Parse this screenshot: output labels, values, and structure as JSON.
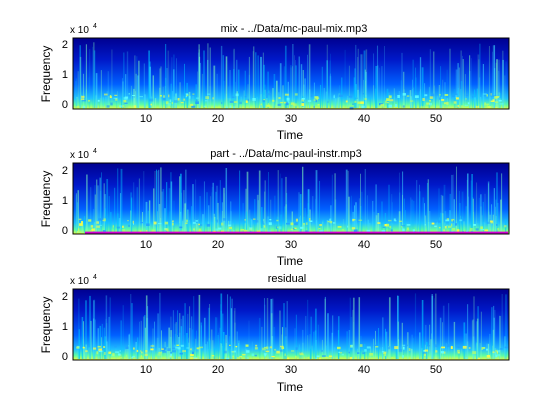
{
  "chart_data": [
    {
      "type": "heatmap",
      "title": "mix - ../Data/mc-paul-mix.mp3",
      "xlabel": "Time",
      "ylabel": "Frequency",
      "y_exponent_label": "x 10",
      "y_exponent": "4",
      "xlim": [
        0,
        60
      ],
      "ylim": [
        0,
        22050
      ],
      "xticks": [
        10,
        20,
        30,
        40,
        50
      ],
      "yticks": [
        0,
        1,
        2
      ],
      "colormap": "jet",
      "grid": false,
      "overlay": null
    },
    {
      "type": "heatmap",
      "title": "part - ../Data/mc-paul-instr.mp3",
      "xlabel": "Time",
      "ylabel": "Frequency",
      "y_exponent_label": "x 10",
      "y_exponent": "4",
      "xlim": [
        0,
        60
      ],
      "ylim": [
        0,
        22050
      ],
      "xticks": [
        10,
        20,
        30,
        40,
        50
      ],
      "yticks": [
        0,
        1,
        2
      ],
      "colormap": "jet",
      "grid": false,
      "overlay": {
        "color": "#d000d0",
        "y_value": 100
      }
    },
    {
      "type": "heatmap",
      "title": "residual",
      "xlabel": "Time",
      "ylabel": "Frequency",
      "y_exponent_label": "x 10",
      "y_exponent": "4",
      "xlim": [
        0,
        60
      ],
      "ylim": [
        0,
        22050
      ],
      "xticks": [
        10,
        20,
        30,
        40,
        50
      ],
      "yticks": [
        0,
        1,
        2
      ],
      "colormap": "jet",
      "grid": false,
      "overlay": null
    }
  ]
}
